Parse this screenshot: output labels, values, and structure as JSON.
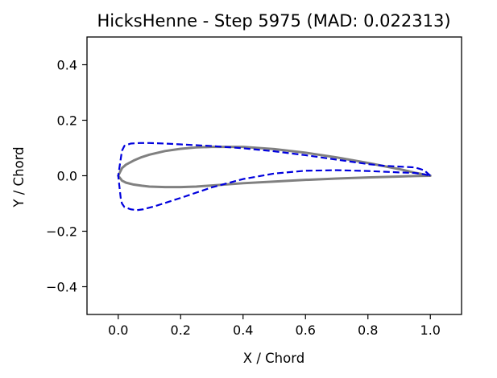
{
  "chart_data": {
    "type": "line",
    "title": "HicksHenne - Step 5975 (MAD: 0.022313)",
    "xlabel": "X / Chord",
    "ylabel": "Y / Chord",
    "xlim": [
      -0.1,
      1.1
    ],
    "ylim": [
      -0.5,
      0.5
    ],
    "grid": false,
    "x_ticks": [
      0.0,
      0.2,
      0.4,
      0.6,
      0.8,
      1.0
    ],
    "x_tick_labels": [
      "0.0",
      "0.2",
      "0.4",
      "0.6",
      "0.8",
      "1.0"
    ],
    "y_ticks": [
      -0.4,
      -0.2,
      0.0,
      0.2,
      0.4
    ],
    "y_tick_labels": [
      "−0.4",
      "−0.2",
      "0.0",
      "0.2",
      "0.4"
    ],
    "series": [
      {
        "color": "#808080",
        "style": "solid",
        "points": [
          [
            1.0,
            0.0
          ],
          [
            0.95,
            0.011
          ],
          [
            0.9,
            0.024
          ],
          [
            0.8,
            0.046
          ],
          [
            0.7,
            0.066
          ],
          [
            0.6,
            0.083
          ],
          [
            0.5,
            0.096
          ],
          [
            0.4,
            0.104
          ],
          [
            0.3,
            0.104
          ],
          [
            0.25,
            0.102
          ],
          [
            0.2,
            0.097
          ],
          [
            0.15,
            0.089
          ],
          [
            0.1,
            0.076
          ],
          [
            0.075,
            0.067
          ],
          [
            0.05,
            0.055
          ],
          [
            0.025,
            0.04
          ],
          [
            0.0125,
            0.028
          ],
          [
            0.0,
            0.0
          ],
          [
            0.0125,
            -0.018
          ],
          [
            0.025,
            -0.025
          ],
          [
            0.05,
            -0.032
          ],
          [
            0.075,
            -0.036
          ],
          [
            0.1,
            -0.039
          ],
          [
            0.15,
            -0.041
          ],
          [
            0.2,
            -0.041
          ],
          [
            0.25,
            -0.039
          ],
          [
            0.3,
            -0.035
          ],
          [
            0.4,
            -0.027
          ],
          [
            0.5,
            -0.021
          ],
          [
            0.6,
            -0.015
          ],
          [
            0.7,
            -0.01
          ],
          [
            0.8,
            -0.006
          ],
          [
            0.9,
            -0.003
          ],
          [
            0.95,
            -0.001
          ],
          [
            1.0,
            0.0
          ]
        ]
      },
      {
        "color": "#0000dd",
        "style": "dashed",
        "points": [
          [
            1.0,
            0.0
          ],
          [
            0.98,
            0.02
          ],
          [
            0.95,
            0.03
          ],
          [
            0.9,
            0.033
          ],
          [
            0.85,
            0.036
          ],
          [
            0.8,
            0.042
          ],
          [
            0.7,
            0.058
          ],
          [
            0.6,
            0.074
          ],
          [
            0.5,
            0.088
          ],
          [
            0.4,
            0.099
          ],
          [
            0.3,
            0.107
          ],
          [
            0.2,
            0.113
          ],
          [
            0.15,
            0.116
          ],
          [
            0.1,
            0.118
          ],
          [
            0.07,
            0.118
          ],
          [
            0.04,
            0.116
          ],
          [
            0.02,
            0.108
          ],
          [
            0.012,
            0.09
          ],
          [
            0.008,
            0.06
          ],
          [
            0.004,
            0.03
          ],
          [
            0.0,
            0.0
          ],
          [
            0.004,
            -0.04
          ],
          [
            0.008,
            -0.08
          ],
          [
            0.012,
            -0.1
          ],
          [
            0.02,
            -0.113
          ],
          [
            0.04,
            -0.121
          ],
          [
            0.06,
            -0.124
          ],
          [
            0.08,
            -0.121
          ],
          [
            0.12,
            -0.109
          ],
          [
            0.2,
            -0.08
          ],
          [
            0.3,
            -0.042
          ],
          [
            0.4,
            -0.012
          ],
          [
            0.5,
            0.008
          ],
          [
            0.6,
            0.018
          ],
          [
            0.7,
            0.02
          ],
          [
            0.8,
            0.017
          ],
          [
            0.9,
            0.012
          ],
          [
            0.95,
            0.01
          ],
          [
            0.98,
            0.005
          ],
          [
            1.0,
            0.0
          ]
        ]
      }
    ]
  }
}
